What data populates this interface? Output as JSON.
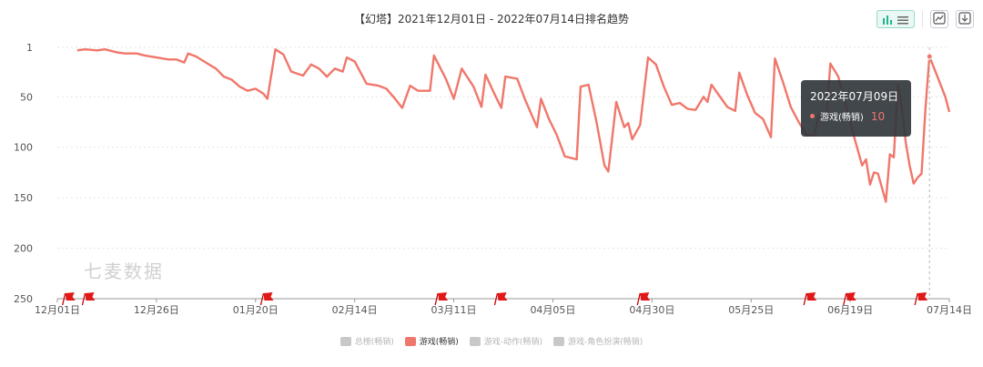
{
  "chart_data": {
    "type": "line",
    "title": "【幻塔】2021年12月01日 - 2022年07月14日排名趋势",
    "ylim": [
      250,
      1
    ],
    "y_inverted": true,
    "yticks": [
      "1",
      "50",
      "100",
      "150",
      "200",
      "250"
    ],
    "xticks": [
      "12月01日",
      "12月26日",
      "01月20日",
      "02月14日",
      "03月11日",
      "04月05日",
      "04月30日",
      "05月25日",
      "06月19日",
      "07月14日"
    ],
    "grid": true,
    "legend_position": "bottom",
    "series": [
      {
        "name": "游戏(畅销)",
        "color": "#f0776b",
        "points": [
          [
            "2021-12-06",
            4
          ],
          [
            "2021-12-08",
            3
          ],
          [
            "2021-12-11",
            4
          ],
          [
            "2021-12-13",
            3
          ],
          [
            "2021-12-16",
            6
          ],
          [
            "2021-12-18",
            7
          ],
          [
            "2021-12-21",
            7
          ],
          [
            "2021-12-23",
            9
          ],
          [
            "2021-12-26",
            11
          ],
          [
            "2021-12-29",
            13
          ],
          [
            "2021-12-31",
            13
          ],
          [
            "2022-01-02",
            16
          ],
          [
            "2022-01-03",
            7
          ],
          [
            "2022-01-05",
            10
          ],
          [
            "2022-01-07",
            15
          ],
          [
            "2022-01-10",
            22
          ],
          [
            "2022-01-12",
            30
          ],
          [
            "2022-01-14",
            33
          ],
          [
            "2022-01-16",
            40
          ],
          [
            "2022-01-18",
            44
          ],
          [
            "2022-01-20",
            42
          ],
          [
            "2022-01-22",
            47
          ],
          [
            "2022-01-23",
            52
          ],
          [
            "2022-01-25",
            3
          ],
          [
            "2022-01-27",
            8
          ],
          [
            "2022-01-29",
            25
          ],
          [
            "2022-02-01",
            29
          ],
          [
            "2022-02-03",
            18
          ],
          [
            "2022-02-05",
            22
          ],
          [
            "2022-02-07",
            30
          ],
          [
            "2022-02-09",
            22
          ],
          [
            "2022-02-11",
            25
          ],
          [
            "2022-02-12",
            11
          ],
          [
            "2022-02-14",
            15
          ],
          [
            "2022-02-17",
            37
          ],
          [
            "2022-02-20",
            39
          ],
          [
            "2022-02-22",
            42
          ],
          [
            "2022-02-24",
            51
          ],
          [
            "2022-02-26",
            61
          ],
          [
            "2022-02-28",
            39
          ],
          [
            "2022-03-02",
            44
          ],
          [
            "2022-03-05",
            44
          ],
          [
            "2022-03-06",
            9
          ],
          [
            "2022-03-09",
            32
          ],
          [
            "2022-03-11",
            52
          ],
          [
            "2022-03-13",
            22
          ],
          [
            "2022-03-16",
            40
          ],
          [
            "2022-03-18",
            60
          ],
          [
            "2022-03-19",
            28
          ],
          [
            "2022-03-21",
            45
          ],
          [
            "2022-03-23",
            61
          ],
          [
            "2022-03-24",
            30
          ],
          [
            "2022-03-27",
            32
          ],
          [
            "2022-03-29",
            53
          ],
          [
            "2022-04-01",
            80
          ],
          [
            "2022-04-02",
            52
          ],
          [
            "2022-04-04",
            72
          ],
          [
            "2022-04-06",
            88
          ],
          [
            "2022-04-08",
            109
          ],
          [
            "2022-04-11",
            112
          ],
          [
            "2022-04-12",
            40
          ],
          [
            "2022-04-14",
            38
          ],
          [
            "2022-04-16",
            75
          ],
          [
            "2022-04-18",
            118
          ],
          [
            "2022-04-19",
            124
          ],
          [
            "2022-04-21",
            55
          ],
          [
            "2022-04-23",
            80
          ],
          [
            "2022-04-24",
            76
          ],
          [
            "2022-04-25",
            92
          ],
          [
            "2022-04-27",
            78
          ],
          [
            "2022-04-29",
            11
          ],
          [
            "2022-05-01",
            18
          ],
          [
            "2022-05-03",
            40
          ],
          [
            "2022-05-05",
            58
          ],
          [
            "2022-05-07",
            56
          ],
          [
            "2022-05-09",
            62
          ],
          [
            "2022-05-11",
            63
          ],
          [
            "2022-05-13",
            50
          ],
          [
            "2022-05-14",
            55
          ],
          [
            "2022-05-15",
            38
          ],
          [
            "2022-05-19",
            60
          ],
          [
            "2022-05-21",
            64
          ],
          [
            "2022-05-22",
            26
          ],
          [
            "2022-05-24",
            48
          ],
          [
            "2022-05-26",
            66
          ],
          [
            "2022-05-28",
            72
          ],
          [
            "2022-05-30",
            90
          ],
          [
            "2022-05-31",
            12
          ],
          [
            "2022-06-02",
            35
          ],
          [
            "2022-06-04",
            60
          ],
          [
            "2022-06-06",
            75
          ],
          [
            "2022-06-08",
            88
          ],
          [
            "2022-06-10",
            88
          ],
          [
            "2022-06-11",
            68
          ],
          [
            "2022-06-13",
            72
          ],
          [
            "2022-06-14",
            17
          ],
          [
            "2022-06-16",
            30
          ],
          [
            "2022-06-18",
            60
          ],
          [
            "2022-06-20",
            90
          ],
          [
            "2022-06-22",
            118
          ],
          [
            "2022-06-23",
            112
          ],
          [
            "2022-06-24",
            137
          ],
          [
            "2022-06-25",
            125
          ],
          [
            "2022-06-26",
            126
          ],
          [
            "2022-06-28",
            154
          ],
          [
            "2022-06-29",
            107
          ],
          [
            "2022-06-30",
            110
          ],
          [
            "2022-07-01",
            38
          ],
          [
            "2022-07-02",
            60
          ],
          [
            "2022-07-03",
            95
          ],
          [
            "2022-07-04",
            118
          ],
          [
            "2022-07-05",
            136
          ],
          [
            "2022-07-06",
            130
          ],
          [
            "2022-07-07",
            126
          ],
          [
            "2022-07-08",
            60
          ],
          [
            "2022-07-09",
            10
          ],
          [
            "2022-07-11",
            30
          ],
          [
            "2022-07-13",
            50
          ],
          [
            "2022-07-14",
            65
          ]
        ]
      }
    ],
    "event_flag_dates": [
      "2021-12-03",
      "2021-12-08",
      "2022-01-22",
      "2022-03-07",
      "2022-03-22",
      "2022-04-27",
      "2022-06-08",
      "2022-06-18",
      "2022-07-06"
    ],
    "tooltip": {
      "date": "2022年07月09日",
      "series": "游戏(畅销)",
      "value": "10"
    }
  },
  "legend": [
    {
      "label": "总榜(畅销)",
      "color": "#c8c8c8",
      "active": false
    },
    {
      "label": "游戏(畅销)",
      "color": "#f0776b",
      "active": true
    },
    {
      "label": "游戏-动作(畅销)",
      "color": "#c8c8c8",
      "active": false
    },
    {
      "label": "游戏-角色扮演(畅销)",
      "color": "#c8c8c8",
      "active": false
    }
  ],
  "watermark": "七麦数据",
  "toolbar": {
    "icons": [
      "bar-chart-icon",
      "list-icon",
      "image-download-icon",
      "download-icon"
    ]
  }
}
